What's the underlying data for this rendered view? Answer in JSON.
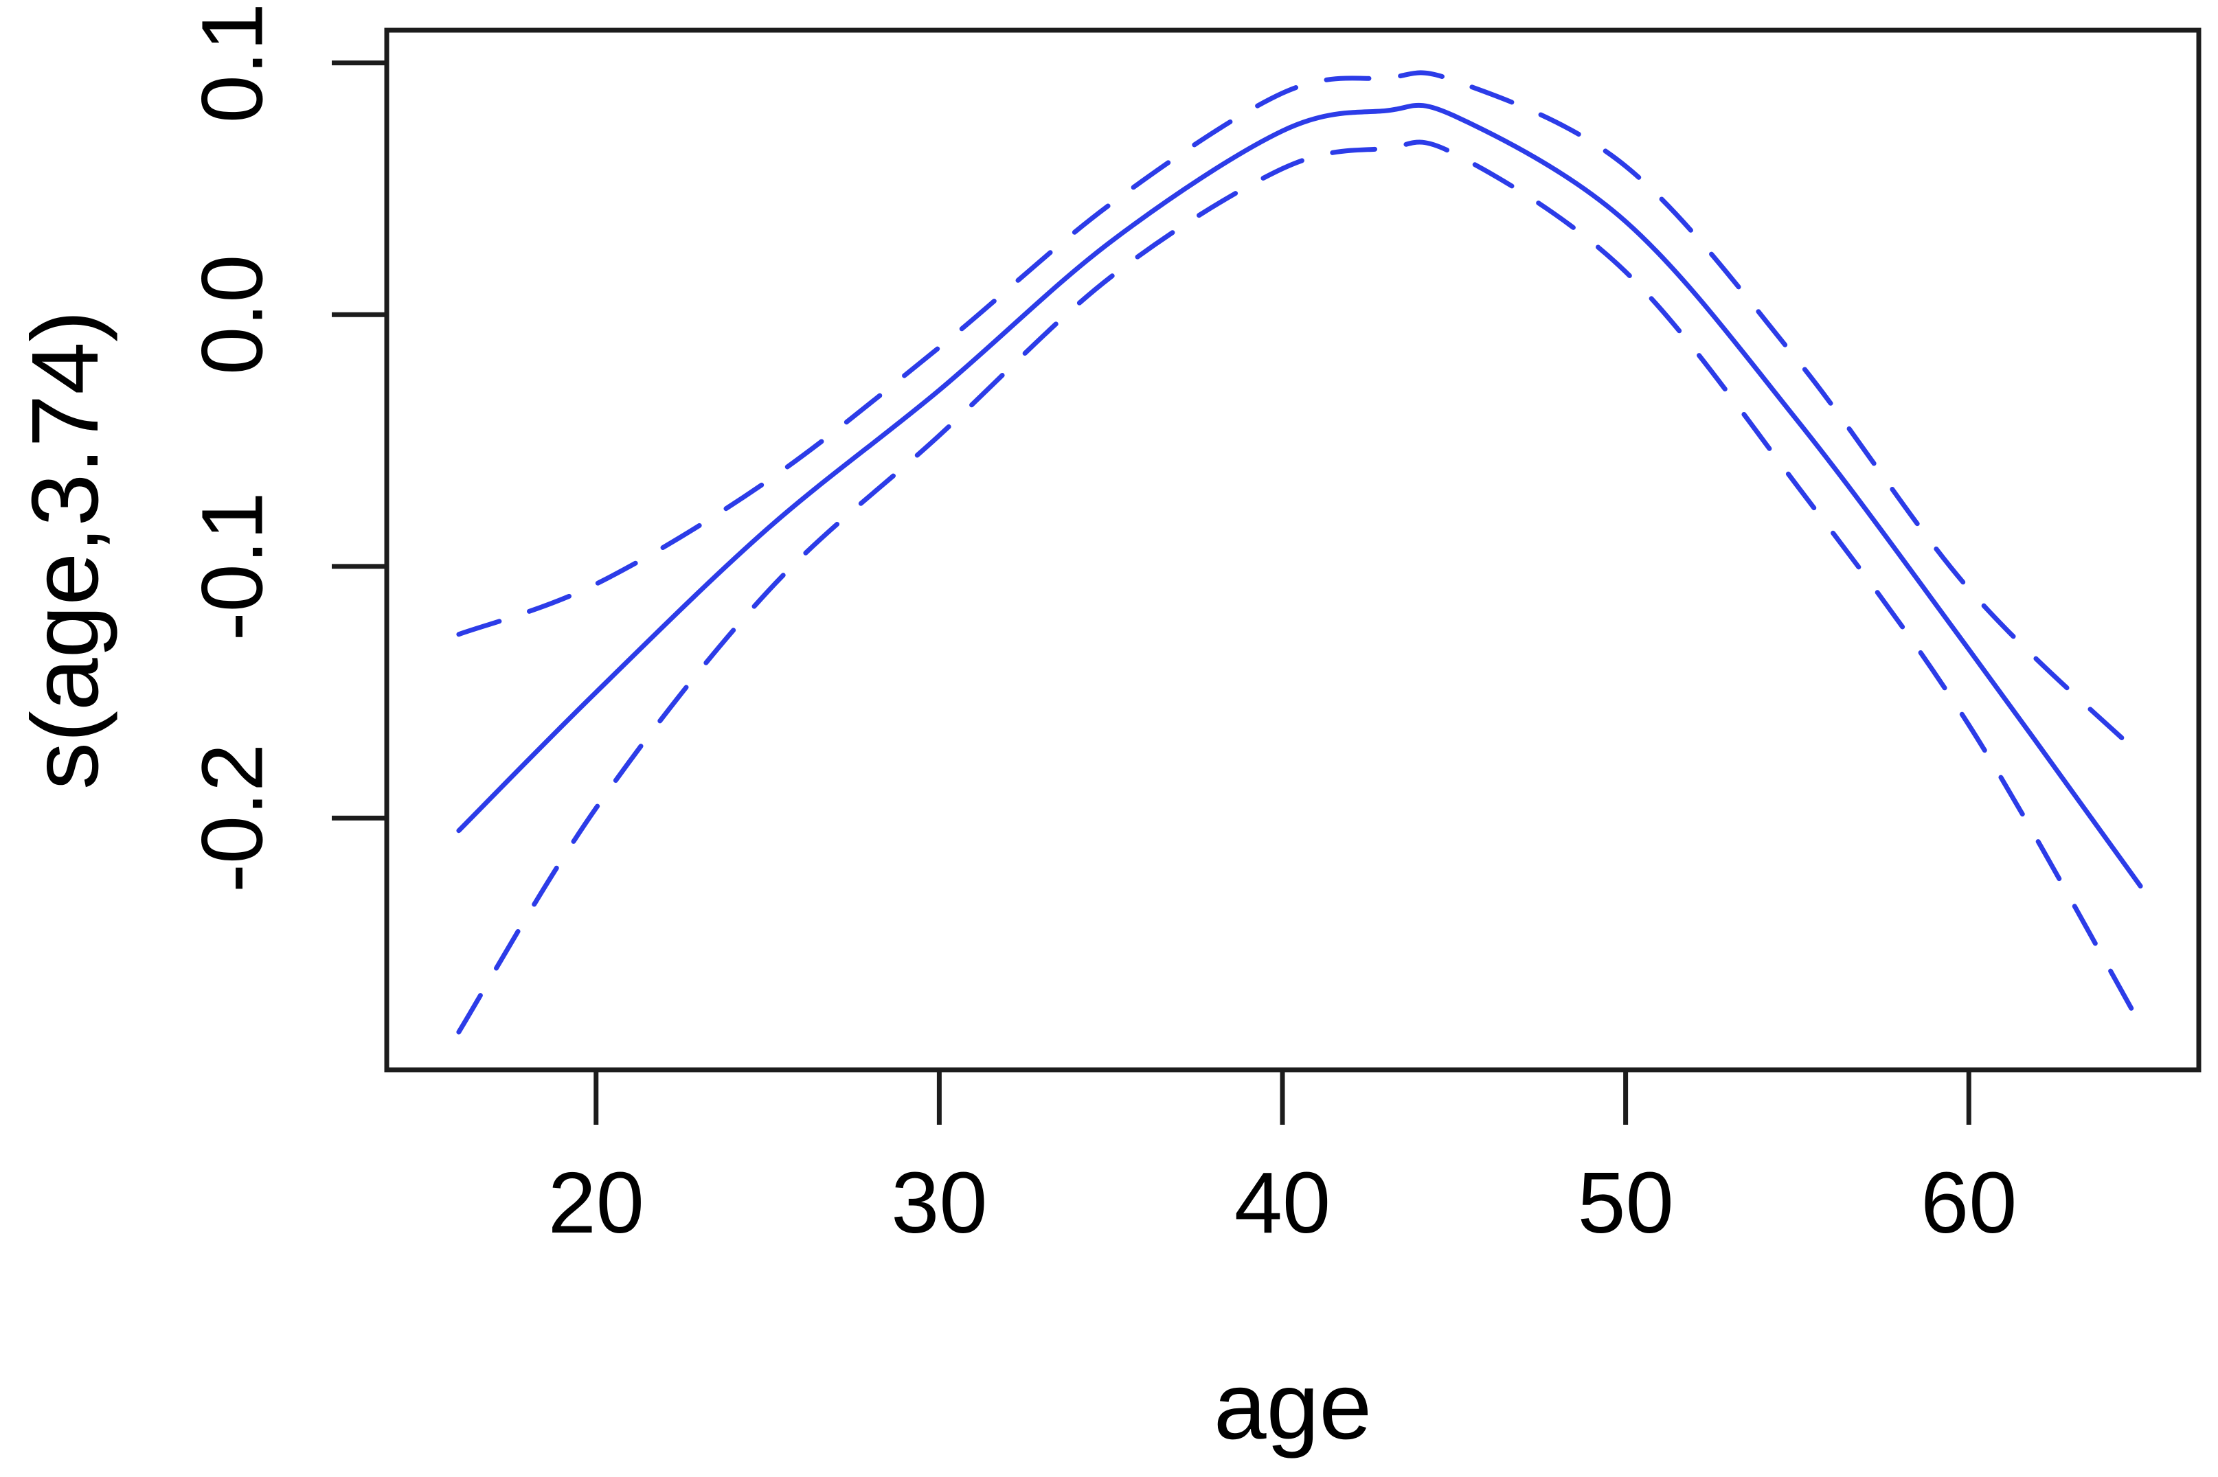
{
  "figure": {
    "background_color": "#ffffff",
    "axis_color": "#1c1c1c",
    "text_color": "#000000"
  },
  "chart_data": {
    "type": "line",
    "title": "",
    "xlabel": "age",
    "ylabel": "s(age,3.74)",
    "grid": false,
    "legend": "none",
    "xlim": [
      13.9,
      66.7
    ],
    "ylim": [
      -0.3,
      0.113
    ],
    "x_ticks": [
      20,
      30,
      40,
      50,
      60
    ],
    "x_tick_labels": [
      "20",
      "30",
      "40",
      "50",
      "60"
    ],
    "y_ticks": [
      0.1,
      0.0,
      -0.1,
      -0.2
    ],
    "y_tick_labels": [
      "0.1",
      "0.0",
      "-0.1",
      "-0.2"
    ],
    "line_color": "#2c3ce8",
    "x": [
      16,
      20,
      25,
      30,
      35,
      40,
      43,
      45,
      50,
      55,
      60,
      65
    ],
    "series": [
      {
        "name": "fit",
        "style": "solid",
        "values": [
          -0.205,
          -0.15,
          -0.085,
          -0.03,
          0.029,
          0.073,
          0.081,
          0.079,
          0.037,
          -0.042,
          -0.133,
          -0.227
        ]
      },
      {
        "name": "upper-ci",
        "style": "dashed",
        "values": [
          -0.127,
          -0.107,
          -0.066,
          -0.013,
          0.044,
          0.088,
          0.094,
          0.093,
          0.059,
          -0.018,
          -0.109,
          -0.175
        ]
      },
      {
        "name": "lower-ci",
        "style": "dashed",
        "values": [
          -0.285,
          -0.196,
          -0.11,
          -0.048,
          0.015,
          0.058,
          0.066,
          0.064,
          0.017,
          -0.068,
          -0.163,
          -0.282
        ]
      }
    ]
  }
}
